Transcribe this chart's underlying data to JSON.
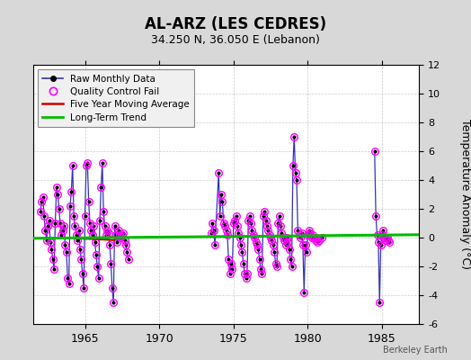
{
  "title": "AL-ARZ (LES CEDRES)",
  "subtitle": "34.250 N, 36.050 E (Lebanon)",
  "ylabel": "Temperature Anomaly (°C)",
  "watermark": "Berkeley Earth",
  "ylim": [
    -6,
    12
  ],
  "yticks": [
    -6,
    -4,
    -2,
    0,
    2,
    4,
    6,
    8,
    10,
    12
  ],
  "xlim": [
    1961.5,
    1987.5
  ],
  "xticks": [
    1965,
    1970,
    1975,
    1980,
    1985
  ],
  "bg_color": "#d8d8d8",
  "plot_bg": "#ffffff",
  "raw_color": "#3333bb",
  "qc_color": "#ff00ff",
  "ma_color": "#cc0000",
  "trend_color": "#00bb00",
  "segments": [
    [
      [
        1962.0,
        1.8
      ],
      [
        1962.083,
        2.5
      ],
      [
        1962.167,
        2.8
      ],
      [
        1962.25,
        1.5
      ],
      [
        1962.333,
        0.5
      ],
      [
        1962.417,
        -0.2
      ],
      [
        1962.5,
        0.8
      ],
      [
        1962.583,
        1.2
      ],
      [
        1962.667,
        -0.3
      ],
      [
        1962.75,
        -0.8
      ],
      [
        1962.833,
        -1.5
      ],
      [
        1962.917,
        -2.2
      ],
      [
        1963.0,
        1.0
      ],
      [
        1963.083,
        3.5
      ],
      [
        1963.167,
        3.0
      ],
      [
        1963.25,
        2.0
      ],
      [
        1963.333,
        1.0
      ],
      [
        1963.417,
        0.2
      ],
      [
        1963.5,
        0.5
      ],
      [
        1963.583,
        0.8
      ],
      [
        1963.667,
        -0.5
      ],
      [
        1963.75,
        -1.0
      ],
      [
        1963.833,
        -2.8
      ],
      [
        1963.917,
        -3.2
      ],
      [
        1964.0,
        2.2
      ],
      [
        1964.083,
        3.2
      ],
      [
        1964.167,
        5.0
      ],
      [
        1964.25,
        1.5
      ],
      [
        1964.333,
        0.8
      ],
      [
        1964.417,
        0.2
      ],
      [
        1964.5,
        -0.2
      ],
      [
        1964.583,
        0.5
      ],
      [
        1964.667,
        -0.8
      ],
      [
        1964.75,
        -1.5
      ],
      [
        1964.833,
        -2.5
      ],
      [
        1964.917,
        -3.5
      ],
      [
        1965.0,
        1.5
      ],
      [
        1965.083,
        5.0
      ],
      [
        1965.167,
        5.2
      ],
      [
        1965.25,
        2.5
      ],
      [
        1965.333,
        1.0
      ],
      [
        1965.417,
        0.5
      ],
      [
        1965.5,
        0.2
      ],
      [
        1965.583,
        0.8
      ],
      [
        1965.667,
        -0.3
      ],
      [
        1965.75,
        -1.2
      ],
      [
        1965.833,
        -2.0
      ],
      [
        1965.917,
        -2.8
      ],
      [
        1966.0,
        1.2
      ],
      [
        1966.083,
        3.5
      ],
      [
        1966.167,
        5.2
      ],
      [
        1966.25,
        1.8
      ],
      [
        1966.333,
        0.8
      ],
      [
        1966.417,
        0.2
      ],
      [
        1966.5,
        0.5
      ],
      [
        1966.583,
        0.3
      ],
      [
        1966.667,
        -0.5
      ],
      [
        1966.75,
        -1.8
      ],
      [
        1966.833,
        -3.5
      ],
      [
        1966.917,
        -4.5
      ],
      [
        1967.0,
        0.8
      ],
      [
        1967.083,
        0.2
      ],
      [
        1967.167,
        -0.3
      ],
      [
        1967.25,
        0.5
      ],
      [
        1967.333,
        0.2
      ],
      [
        1967.417,
        0.0
      ],
      [
        1967.5,
        0.1
      ],
      [
        1967.583,
        0.3
      ],
      [
        1967.667,
        -0.2
      ],
      [
        1967.75,
        -0.5
      ],
      [
        1967.833,
        -1.0
      ],
      [
        1967.917,
        -1.5
      ]
    ],
    [
      [
        1973.5,
        0.3
      ],
      [
        1973.583,
        1.0
      ],
      [
        1973.667,
        0.5
      ],
      [
        1973.75,
        -0.5
      ],
      [
        1974.0,
        4.5
      ],
      [
        1974.083,
        1.5
      ],
      [
        1974.167,
        3.0
      ],
      [
        1974.25,
        2.5
      ],
      [
        1974.333,
        1.0
      ],
      [
        1974.417,
        0.8
      ],
      [
        1974.5,
        0.5
      ],
      [
        1974.583,
        0.2
      ],
      [
        1974.667,
        -1.5
      ],
      [
        1974.75,
        -2.5
      ],
      [
        1974.833,
        -1.8
      ],
      [
        1974.917,
        -2.2
      ],
      [
        1975.0,
        1.0
      ],
      [
        1975.083,
        1.2
      ],
      [
        1975.167,
        1.5
      ],
      [
        1975.25,
        0.8
      ],
      [
        1975.333,
        0.3
      ],
      [
        1975.417,
        0.0
      ],
      [
        1975.5,
        -0.5
      ],
      [
        1975.583,
        -1.0
      ],
      [
        1975.667,
        -1.8
      ],
      [
        1975.75,
        -2.5
      ],
      [
        1975.833,
        -2.8
      ],
      [
        1975.917,
        -2.5
      ],
      [
        1976.0,
        1.2
      ],
      [
        1976.083,
        1.5
      ],
      [
        1976.167,
        1.0
      ],
      [
        1976.25,
        0.5
      ],
      [
        1976.333,
        0.2
      ],
      [
        1976.417,
        0.0
      ],
      [
        1976.5,
        -0.3
      ],
      [
        1976.583,
        -0.5
      ],
      [
        1976.667,
        -0.8
      ],
      [
        1976.75,
        -1.5
      ],
      [
        1976.833,
        -2.2
      ],
      [
        1976.917,
        -2.5
      ],
      [
        1977.0,
        1.5
      ],
      [
        1977.083,
        1.8
      ],
      [
        1977.167,
        1.2
      ],
      [
        1977.25,
        0.8
      ],
      [
        1977.333,
        0.5
      ],
      [
        1977.417,
        0.2
      ],
      [
        1977.5,
        0.0
      ],
      [
        1977.583,
        -0.2
      ],
      [
        1977.667,
        -0.5
      ],
      [
        1977.75,
        -1.0
      ],
      [
        1977.833,
        -1.8
      ],
      [
        1977.917,
        -2.0
      ],
      [
        1978.0,
        1.0
      ],
      [
        1978.083,
        1.5
      ],
      [
        1978.167,
        0.8
      ],
      [
        1978.25,
        0.3
      ],
      [
        1978.333,
        0.0
      ],
      [
        1978.417,
        -0.2
      ],
      [
        1978.5,
        -0.5
      ],
      [
        1978.583,
        0.0
      ],
      [
        1978.667,
        -0.3
      ],
      [
        1978.75,
        -0.8
      ],
      [
        1978.833,
        -1.5
      ],
      [
        1978.917,
        -2.0
      ],
      [
        1979.0,
        5.0
      ],
      [
        1979.083,
        7.0
      ],
      [
        1979.167,
        4.5
      ],
      [
        1979.25,
        4.0
      ],
      [
        1979.333,
        0.5
      ],
      [
        1979.417,
        0.2
      ],
      [
        1979.5,
        0.0
      ],
      [
        1979.583,
        0.3
      ],
      [
        1979.667,
        -0.5
      ],
      [
        1979.75,
        -3.8
      ],
      [
        1979.833,
        -0.5
      ],
      [
        1979.917,
        -1.0
      ],
      [
        1980.0,
        0.2
      ],
      [
        1980.083,
        0.5
      ],
      [
        1980.167,
        0.3
      ],
      [
        1980.25,
        0.0
      ],
      [
        1980.333,
        0.2
      ],
      [
        1980.417,
        0.0
      ],
      [
        1980.5,
        -0.2
      ],
      [
        1980.583,
        0.0
      ],
      [
        1980.667,
        -0.3
      ],
      [
        1980.75,
        -0.2
      ],
      [
        1980.917,
        0.0
      ]
    ],
    [
      [
        1984.5,
        6.0
      ],
      [
        1984.583,
        1.5
      ],
      [
        1984.667,
        0.2
      ],
      [
        1984.75,
        -0.3
      ],
      [
        1984.833,
        -4.5
      ],
      [
        1984.917,
        -0.5
      ],
      [
        1985.0,
        0.2
      ],
      [
        1985.083,
        0.5
      ],
      [
        1985.167,
        0.0
      ],
      [
        1985.25,
        -0.2
      ],
      [
        1985.333,
        0.0
      ],
      [
        1985.417,
        -0.2
      ],
      [
        1985.5,
        -0.3
      ]
    ]
  ],
  "qc_fail_points": [
    [
      1962.0,
      1.8
    ],
    [
      1962.083,
      2.5
    ],
    [
      1962.167,
      2.8
    ],
    [
      1962.25,
      1.5
    ],
    [
      1962.333,
      0.5
    ],
    [
      1962.417,
      -0.2
    ],
    [
      1962.5,
      0.8
    ],
    [
      1962.583,
      1.2
    ],
    [
      1962.667,
      -0.3
    ],
    [
      1962.75,
      -0.8
    ],
    [
      1962.833,
      -1.5
    ],
    [
      1962.917,
      -2.2
    ],
    [
      1963.0,
      1.0
    ],
    [
      1963.083,
      3.5
    ],
    [
      1963.167,
      3.0
    ],
    [
      1963.25,
      2.0
    ],
    [
      1963.333,
      1.0
    ],
    [
      1963.417,
      0.2
    ],
    [
      1963.5,
      0.5
    ],
    [
      1963.583,
      0.8
    ],
    [
      1963.667,
      -0.5
    ],
    [
      1963.75,
      -1.0
    ],
    [
      1963.833,
      -2.8
    ],
    [
      1963.917,
      -3.2
    ],
    [
      1964.0,
      2.2
    ],
    [
      1964.083,
      3.2
    ],
    [
      1964.167,
      5.0
    ],
    [
      1964.25,
      1.5
    ],
    [
      1964.333,
      0.8
    ],
    [
      1964.417,
      0.2
    ],
    [
      1964.5,
      -0.2
    ],
    [
      1964.583,
      0.5
    ],
    [
      1964.667,
      -0.8
    ],
    [
      1964.75,
      -1.5
    ],
    [
      1964.833,
      -2.5
    ],
    [
      1964.917,
      -3.5
    ],
    [
      1965.0,
      1.5
    ],
    [
      1965.083,
      5.0
    ],
    [
      1965.167,
      5.2
    ],
    [
      1965.25,
      2.5
    ],
    [
      1965.333,
      1.0
    ],
    [
      1965.417,
      0.5
    ],
    [
      1965.5,
      0.2
    ],
    [
      1965.583,
      0.8
    ],
    [
      1965.667,
      -0.3
    ],
    [
      1965.75,
      -1.2
    ],
    [
      1965.833,
      -2.0
    ],
    [
      1965.917,
      -2.8
    ],
    [
      1966.0,
      1.2
    ],
    [
      1966.083,
      3.5
    ],
    [
      1966.167,
      5.2
    ],
    [
      1966.25,
      1.8
    ],
    [
      1966.333,
      0.8
    ],
    [
      1966.417,
      0.2
    ],
    [
      1966.5,
      0.5
    ],
    [
      1966.583,
      0.3
    ],
    [
      1966.667,
      -0.5
    ],
    [
      1966.75,
      -1.8
    ],
    [
      1966.833,
      -3.5
    ],
    [
      1966.917,
      -4.5
    ],
    [
      1967.0,
      0.8
    ],
    [
      1967.083,
      0.2
    ],
    [
      1967.167,
      -0.3
    ],
    [
      1967.25,
      0.5
    ],
    [
      1967.333,
      0.2
    ],
    [
      1967.417,
      0.0
    ],
    [
      1967.5,
      0.1
    ],
    [
      1967.583,
      0.3
    ],
    [
      1967.667,
      -0.2
    ],
    [
      1967.75,
      -0.5
    ],
    [
      1967.833,
      -1.0
    ],
    [
      1967.917,
      -1.5
    ],
    [
      1973.5,
      0.3
    ],
    [
      1973.583,
      1.0
    ],
    [
      1973.667,
      0.5
    ],
    [
      1973.75,
      -0.5
    ],
    [
      1974.0,
      4.5
    ],
    [
      1974.083,
      1.5
    ],
    [
      1974.167,
      3.0
    ],
    [
      1974.25,
      2.5
    ],
    [
      1974.333,
      1.0
    ],
    [
      1974.417,
      0.8
    ],
    [
      1974.5,
      0.5
    ],
    [
      1974.583,
      0.2
    ],
    [
      1974.667,
      -1.5
    ],
    [
      1974.75,
      -2.5
    ],
    [
      1974.833,
      -1.8
    ],
    [
      1974.917,
      -2.2
    ],
    [
      1975.0,
      1.0
    ],
    [
      1975.083,
      1.2
    ],
    [
      1975.167,
      1.5
    ],
    [
      1975.25,
      0.8
    ],
    [
      1975.333,
      0.3
    ],
    [
      1975.417,
      0.0
    ],
    [
      1975.5,
      -0.5
    ],
    [
      1975.583,
      -1.0
    ],
    [
      1975.667,
      -1.8
    ],
    [
      1975.75,
      -2.5
    ],
    [
      1975.833,
      -2.8
    ],
    [
      1975.917,
      -2.5
    ],
    [
      1976.0,
      1.2
    ],
    [
      1976.083,
      1.5
    ],
    [
      1976.167,
      1.0
    ],
    [
      1976.25,
      0.5
    ],
    [
      1976.333,
      0.2
    ],
    [
      1976.417,
      0.0
    ],
    [
      1976.5,
      -0.3
    ],
    [
      1976.583,
      -0.5
    ],
    [
      1976.667,
      -0.8
    ],
    [
      1976.75,
      -1.5
    ],
    [
      1976.833,
      -2.2
    ],
    [
      1976.917,
      -2.5
    ],
    [
      1977.0,
      1.5
    ],
    [
      1977.083,
      1.8
    ],
    [
      1977.167,
      1.2
    ],
    [
      1977.25,
      0.8
    ],
    [
      1977.333,
      0.5
    ],
    [
      1977.417,
      0.2
    ],
    [
      1977.5,
      0.0
    ],
    [
      1977.583,
      -0.2
    ],
    [
      1977.667,
      -0.5
    ],
    [
      1977.75,
      -1.0
    ],
    [
      1977.833,
      -1.8
    ],
    [
      1977.917,
      -2.0
    ],
    [
      1978.0,
      1.0
    ],
    [
      1978.083,
      1.5
    ],
    [
      1978.167,
      0.8
    ],
    [
      1978.25,
      0.3
    ],
    [
      1978.333,
      0.0
    ],
    [
      1978.417,
      -0.2
    ],
    [
      1978.5,
      -0.5
    ],
    [
      1978.583,
      0.0
    ],
    [
      1978.667,
      -0.3
    ],
    [
      1978.75,
      -0.8
    ],
    [
      1978.833,
      -1.5
    ],
    [
      1978.917,
      -2.0
    ],
    [
      1979.0,
      5.0
    ],
    [
      1979.083,
      7.0
    ],
    [
      1979.167,
      4.5
    ],
    [
      1979.25,
      4.0
    ],
    [
      1979.333,
      0.5
    ],
    [
      1979.417,
      0.2
    ],
    [
      1979.5,
      0.0
    ],
    [
      1979.583,
      0.3
    ],
    [
      1979.667,
      -0.5
    ],
    [
      1979.75,
      -3.8
    ],
    [
      1979.833,
      -0.5
    ],
    [
      1979.917,
      -1.0
    ],
    [
      1980.0,
      0.2
    ],
    [
      1980.083,
      0.5
    ],
    [
      1980.167,
      0.3
    ],
    [
      1980.25,
      0.0
    ],
    [
      1980.333,
      0.2
    ],
    [
      1980.417,
      0.0
    ],
    [
      1980.5,
      -0.2
    ],
    [
      1980.583,
      0.0
    ],
    [
      1980.667,
      -0.3
    ],
    [
      1980.75,
      -0.2
    ],
    [
      1980.917,
      0.0
    ],
    [
      1984.5,
      6.0
    ],
    [
      1984.583,
      1.5
    ],
    [
      1984.667,
      0.2
    ],
    [
      1984.75,
      -0.3
    ],
    [
      1984.833,
      -4.5
    ],
    [
      1984.917,
      -0.5
    ],
    [
      1985.0,
      0.2
    ],
    [
      1985.083,
      0.5
    ],
    [
      1985.167,
      0.0
    ],
    [
      1985.25,
      -0.2
    ],
    [
      1985.333,
      0.0
    ],
    [
      1985.417,
      -0.2
    ],
    [
      1985.5,
      -0.3
    ]
  ],
  "ma_x": [
    1964.5,
    1965.0,
    1965.5,
    1966.0,
    1966.5,
    1967.0
  ],
  "ma_y": [
    -0.05,
    -0.08,
    -0.1,
    -0.12,
    -0.15,
    -0.18
  ],
  "trend_x": [
    1961.5,
    1987.5
  ],
  "trend_y": [
    -0.05,
    0.2
  ],
  "grid_color": "#aaaaaa",
  "grid_alpha": 0.6
}
